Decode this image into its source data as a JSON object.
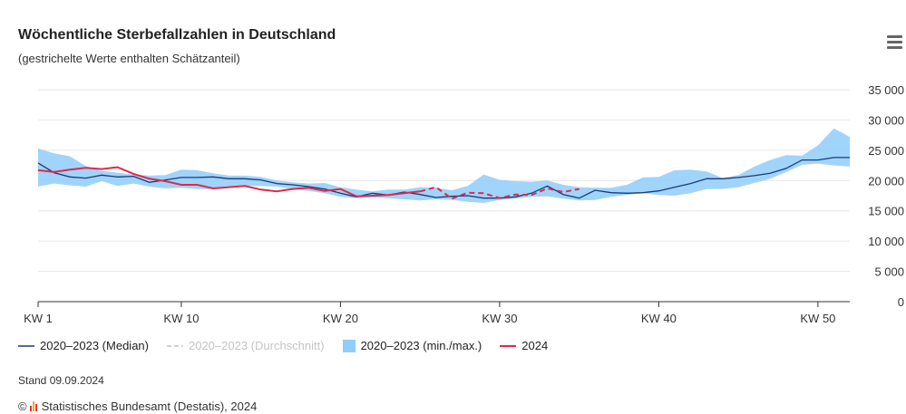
{
  "header": {
    "title": "Wöchentliche Sterbefallzahlen in Deutschland",
    "subtitle": "(gestrichelte Werte enthalten Schätzanteil)",
    "menu_icon": "hamburger-menu-icon"
  },
  "chart_data": {
    "type": "line",
    "title": "Wöchentliche Sterbefallzahlen in Deutschland",
    "subtitle": "(gestrichelte Werte enthalten Schätzanteil)",
    "xlabel": "",
    "ylabel": "",
    "xlim": [
      1,
      52
    ],
    "ylim": [
      0,
      35000
    ],
    "grid": true,
    "legend_position": "bottom-left",
    "x_ticks": [
      {
        "x": 1,
        "label": "KW 1"
      },
      {
        "x": 10,
        "label": "KW 10"
      },
      {
        "x": 20,
        "label": "KW 20"
      },
      {
        "x": 30,
        "label": "KW 30"
      },
      {
        "x": 40,
        "label": "KW 40"
      },
      {
        "x": 50,
        "label": "KW 50"
      }
    ],
    "y_ticks": [
      {
        "y": 0,
        "label": "0"
      },
      {
        "y": 5000,
        "label": "5 000"
      },
      {
        "y": 10000,
        "label": "10 000"
      },
      {
        "y": 15000,
        "label": "15 000"
      },
      {
        "y": 20000,
        "label": "20 000"
      },
      {
        "y": 25000,
        "label": "25 000"
      },
      {
        "y": 30000,
        "label": "30 000"
      },
      {
        "y": 35000,
        "label": "35 000"
      }
    ],
    "weeks": [
      1,
      2,
      3,
      4,
      5,
      6,
      7,
      8,
      9,
      10,
      11,
      12,
      13,
      14,
      15,
      16,
      17,
      18,
      19,
      20,
      21,
      22,
      23,
      24,
      25,
      26,
      27,
      28,
      29,
      30,
      31,
      32,
      33,
      34,
      35,
      36,
      37,
      38,
      39,
      40,
      41,
      42,
      43,
      44,
      45,
      46,
      47,
      48,
      49,
      50,
      51,
      52
    ],
    "series": [
      {
        "name": "2020–2023 (Median)",
        "color": "#1a3b73",
        "values": [
          22900,
          21300,
          20600,
          20400,
          20900,
          20600,
          20700,
          19700,
          20100,
          20500,
          20500,
          20600,
          20300,
          20300,
          20100,
          19500,
          19300,
          19000,
          18600,
          17900,
          17300,
          17900,
          17600,
          18100,
          17700,
          17200,
          17400,
          17500,
          17100,
          17100,
          17300,
          17900,
          19100,
          17700,
          17100,
          18400,
          18000,
          17900,
          18000,
          18300,
          18900,
          19500,
          20300,
          20300,
          20500,
          20800,
          21200,
          22000,
          23400,
          23400,
          23800,
          23800
        ]
      },
      {
        "name": "2020–2023 (Durchschnitt)",
        "color": "#c4c4c4",
        "hidden": true,
        "values": []
      },
      {
        "name": "2020–2023 (min./max.)",
        "color": "#8fcdfa",
        "type": "arearange",
        "min": [
          19000,
          19500,
          19200,
          19000,
          19900,
          19100,
          19500,
          19000,
          18700,
          18800,
          18600,
          18600,
          18900,
          19100,
          19100,
          19000,
          18600,
          18300,
          17900,
          17300,
          17100,
          17200,
          17100,
          16900,
          16700,
          16900,
          16800,
          16500,
          16300,
          16800,
          17000,
          17300,
          17400,
          17000,
          16700,
          16800,
          17300,
          17600,
          17900,
          17600,
          17500,
          17900,
          18600,
          18600,
          18900,
          19600,
          20300,
          21400,
          22600,
          22800,
          22500,
          22300
        ],
        "max": [
          25300,
          24500,
          24000,
          22400,
          21600,
          21300,
          21000,
          20800,
          20900,
          21800,
          21700,
          21200,
          20800,
          20800,
          20600,
          20000,
          19700,
          19500,
          19600,
          18900,
          18500,
          18200,
          18500,
          18500,
          18900,
          18800,
          18400,
          19100,
          21000,
          20100,
          19900,
          19800,
          20000,
          19300,
          18900,
          18800,
          18800,
          19300,
          20500,
          20600,
          21700,
          21800,
          21500,
          20400,
          20900,
          22300,
          23400,
          24200,
          24100,
          25800,
          28600,
          27200
        ]
      },
      {
        "name": "2024",
        "color": "#e0284b",
        "values": [
          21700,
          21400,
          21800,
          22100,
          21900,
          22200,
          21100,
          20300,
          19900,
          19300,
          19300,
          18700,
          18900,
          19100,
          18500,
          18200,
          18600,
          18800,
          18300,
          18600,
          17400,
          17500,
          17600,
          17900,
          18200,
          18900,
          17000,
          18000,
          17900,
          17100,
          17700,
          17600,
          18700,
          18100,
          18600
        ],
        "estimated_from_week": 25
      }
    ]
  },
  "legend": {
    "items": [
      {
        "label": "2020–2023 (Median)",
        "color": "#1a3b73"
      },
      {
        "label": "2020–2023 (Durchschnitt)",
        "color": "#c4c4c4"
      },
      {
        "label": "2020–2023 (min./max.)",
        "color": "#8fcdfa"
      },
      {
        "label": "2024",
        "color": "#e0284b"
      }
    ]
  },
  "footer": {
    "stand": "Stand 09.09.2024",
    "copyright_symbol": "©",
    "source": "Statistisches Bundesamt (Destatis), 2024",
    "logo_icon": "destatis-logo-icon"
  }
}
